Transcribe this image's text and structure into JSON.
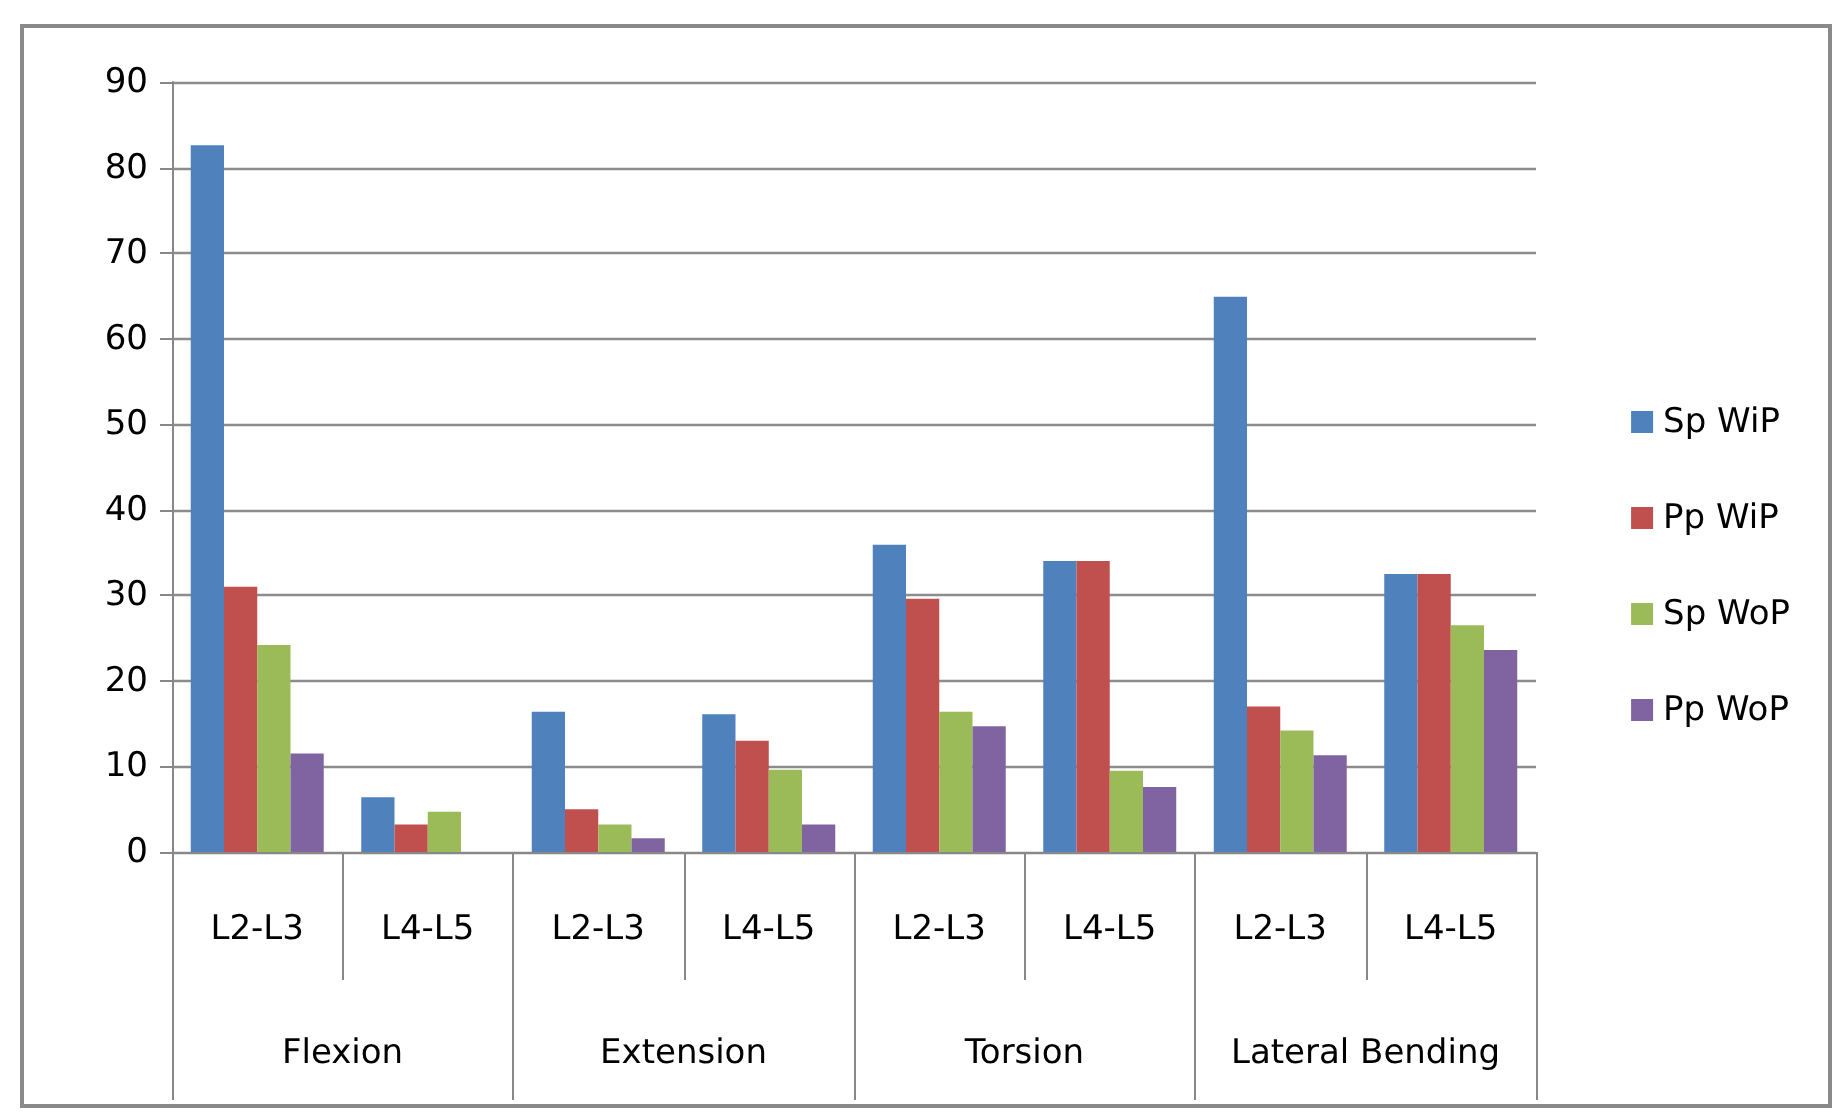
{
  "chart_data": {
    "type": "bar",
    "categories": [
      "L2-L3",
      "L4-L5",
      "L2-L3",
      "L4-L5",
      "L2-L3",
      "L4-L5",
      "L2-L3",
      "L4-L5"
    ],
    "annotations": [
      "Flexion",
      "Extension",
      "Torsion",
      "Lateral Bending"
    ],
    "series": [
      {
        "name": "Sp WiP",
        "color": "#4f81bd",
        "values": [
          82.6,
          6.4,
          16.4,
          16.1,
          35.9,
          34.0,
          64.9,
          32.5
        ]
      },
      {
        "name": "Pp WiP",
        "color": "#c0504d",
        "values": [
          31.0,
          3.2,
          5.0,
          13.0,
          29.6,
          34.0,
          17.0,
          32.5
        ]
      },
      {
        "name": "Sp WoP",
        "color": "#9bbb59",
        "values": [
          24.2,
          4.7,
          3.2,
          9.6,
          16.4,
          9.5,
          14.2,
          26.5
        ]
      },
      {
        "name": "Pp WoP",
        "color": "#8064a2",
        "values": [
          11.5,
          null,
          1.6,
          3.2,
          14.7,
          7.6,
          11.3,
          23.6
        ]
      }
    ],
    "ylim": [
      0,
      90
    ],
    "yticks": [
      0,
      10,
      20,
      30,
      40,
      50,
      60,
      70,
      80,
      90
    ],
    "grid": "y",
    "legend": "right"
  }
}
